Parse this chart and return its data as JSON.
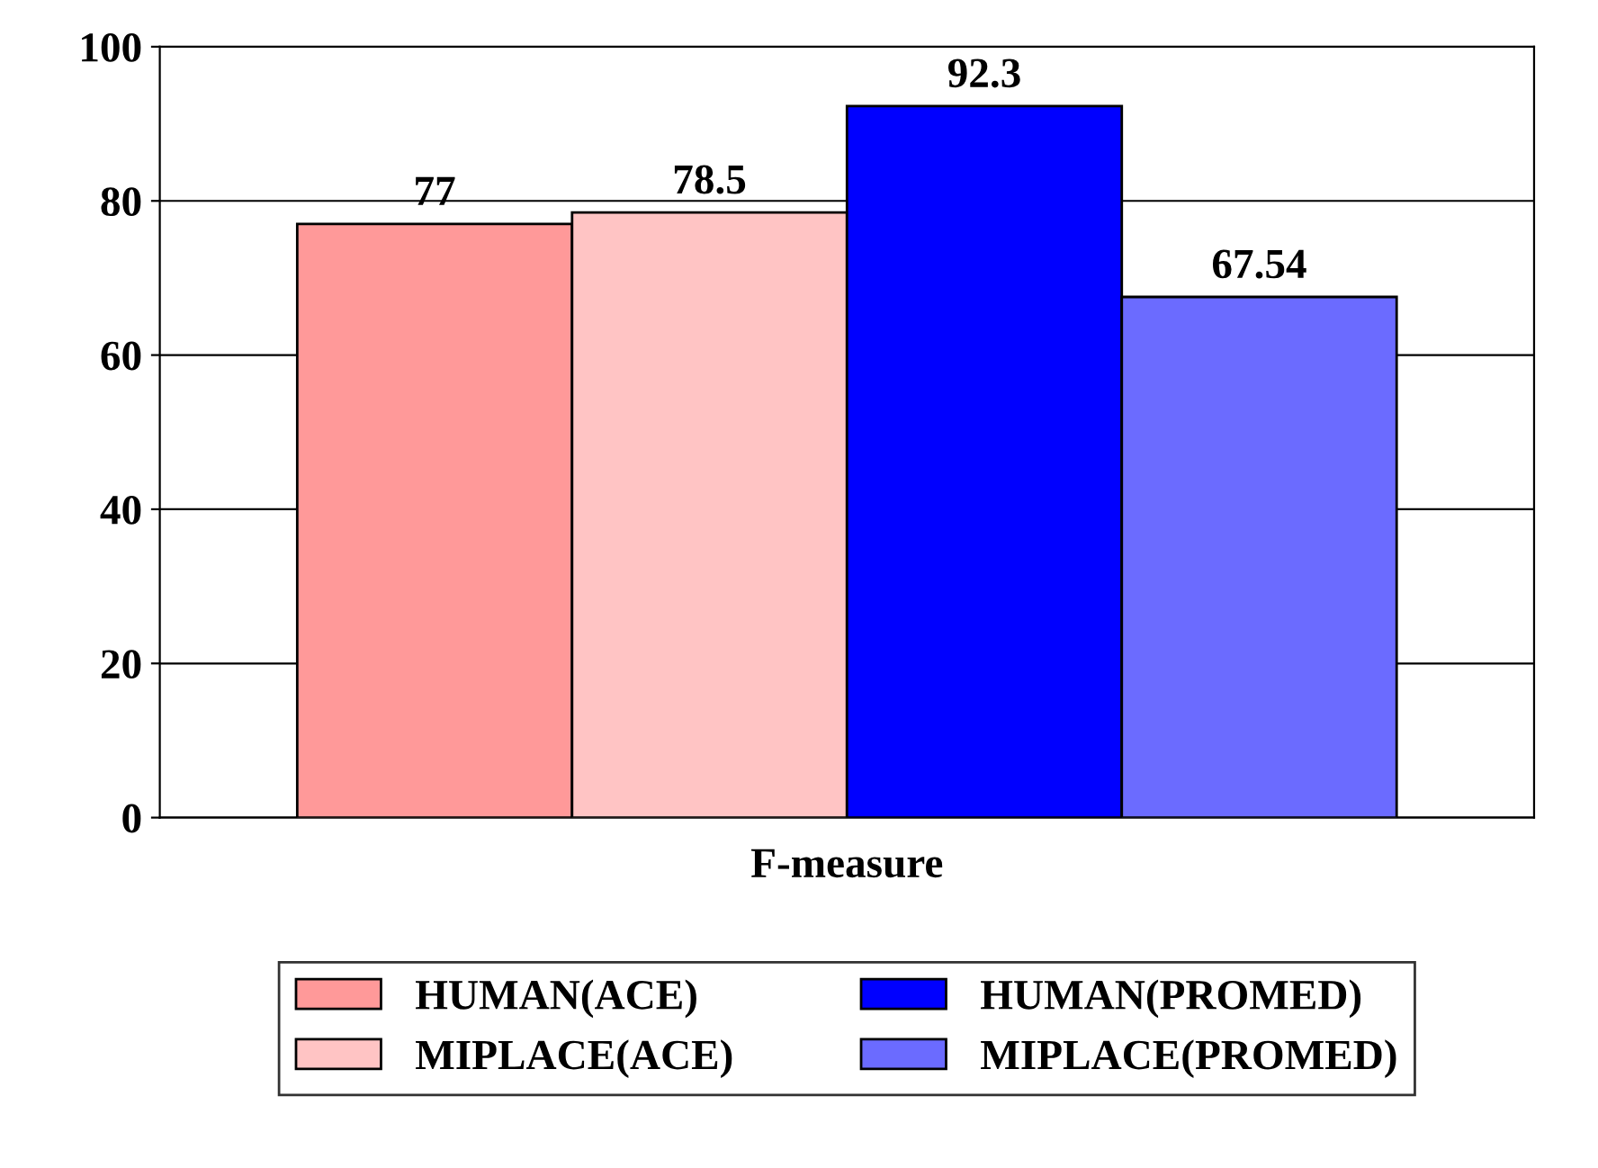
{
  "chart_data": {
    "type": "bar",
    "categories": [
      "F-measure"
    ],
    "series": [
      {
        "name": "HUMAN(ACE)",
        "color": "#ff9999",
        "values": [
          77
        ]
      },
      {
        "name": "MIPLACE(ACE)",
        "color": "#ffc4c4",
        "values": [
          78.5
        ]
      },
      {
        "name": "HUMAN(PROMED)",
        "color": "#0000ff",
        "values": [
          92.3
        ]
      },
      {
        "name": "MIPLACE(PROMED)",
        "color": "#6b6bff",
        "values": [
          67.54
        ]
      }
    ],
    "ylim": [
      0,
      100
    ],
    "yticks": [
      0,
      20,
      40,
      60,
      80,
      100
    ],
    "grid": "y",
    "legend": "bottom",
    "data_labels": true
  }
}
